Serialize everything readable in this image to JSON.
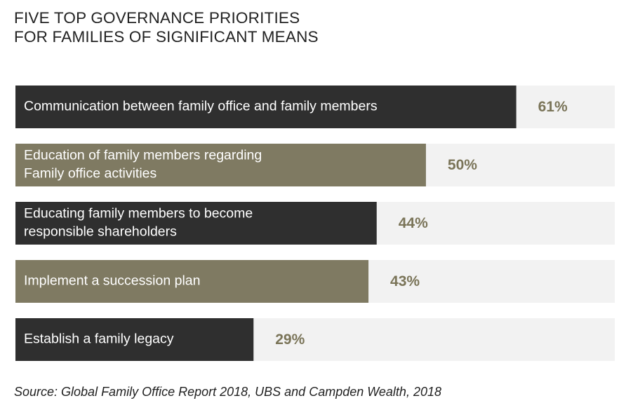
{
  "title": {
    "line1": "FIVE TOP GOVERNANCE PRIORITIES",
    "line2": "FOR FAMILIES OF SIGNIFICANT MEANS"
  },
  "source": "Source: Global Family Office Report 2018, UBS and Campden Wealth, 2018",
  "colors": {
    "dark": "#2f2f2f",
    "olive": "#7f7a62",
    "track": "#f2f2f2",
    "value_text": "#7a7458",
    "bar_text": "#ffffff"
  },
  "chart_data": {
    "type": "bar",
    "orientation": "horizontal",
    "xlim": [
      0,
      73
    ],
    "categories": [
      [
        "Communication between family office and family members"
      ],
      [
        "Education of family members regarding",
        "Family office activities"
      ],
      [
        "Educating family members to become",
        "responsible shareholders"
      ],
      [
        "Implement a succession plan"
      ],
      [
        "Establish a family legacy"
      ]
    ],
    "values": [
      61,
      50,
      44,
      43,
      29
    ],
    "value_labels": [
      "61%",
      "50%",
      "44%",
      "43%",
      "29%"
    ],
    "bar_colors": [
      "dark",
      "olive",
      "dark",
      "olive",
      "dark"
    ]
  }
}
